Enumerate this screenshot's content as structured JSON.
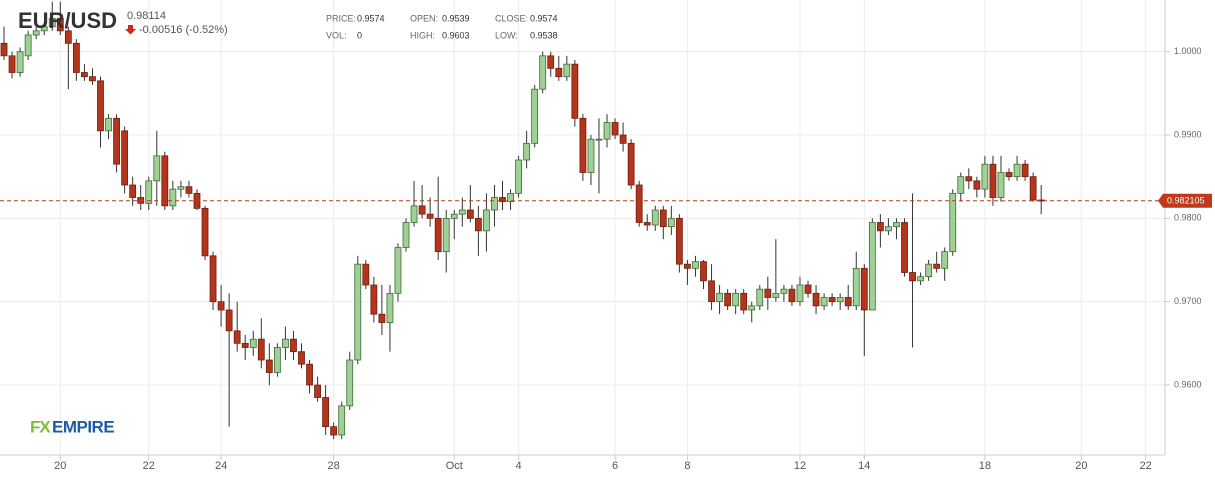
{
  "chart_data": {
    "type": "candlestick",
    "title": "EUR/USD",
    "price": "0.98114",
    "change": "-0.00516 (-0.52%)",
    "info": [
      {
        "label": "PRICE:",
        "value": "0.9574"
      },
      {
        "label": "OPEN:",
        "value": "0.9539"
      },
      {
        "label": "CLOSE:",
        "value": "0.9574"
      },
      {
        "label": "VOL:",
        "value": "0"
      },
      {
        "label": "HIGH:",
        "value": "0.9603"
      },
      {
        "label": "LOW:",
        "value": "0.9538"
      }
    ],
    "logo": [
      "FX",
      "EMPIRE"
    ],
    "current_price": 0.982105,
    "current_color": "#c0391b",
    "up_color": "#9fd095",
    "down_color": "#b3361c",
    "ylim": [
      0.9516,
      1.0062
    ],
    "yticks": [
      {
        "value": 0.96,
        "label": "0.9600"
      },
      {
        "value": 0.97,
        "label": "0.9700"
      },
      {
        "value": 0.98,
        "label": "0.9800"
      },
      {
        "value": 0.99,
        "label": "0.9900"
      },
      {
        "value": 1.0,
        "label": "1.0000"
      }
    ],
    "grid": true,
    "categories": [
      null,
      null,
      null,
      null,
      null,
      null,
      null,
      "20",
      null,
      null,
      null,
      null,
      null,
      null,
      null,
      null,
      null,
      null,
      "22",
      null,
      null,
      null,
      null,
      null,
      null,
      null,
      null,
      "24",
      null,
      null,
      null,
      null,
      null,
      null,
      null,
      null,
      null,
      null,
      null,
      null,
      null,
      "28",
      null,
      null,
      null,
      null,
      null,
      null,
      null,
      null,
      null,
      null,
      null,
      null,
      null,
      null,
      "Oct",
      null,
      null,
      null,
      null,
      null,
      null,
      null,
      "4",
      null,
      null,
      null,
      null,
      null,
      null,
      null,
      null,
      null,
      null,
      null,
      "6",
      null,
      null,
      null,
      null,
      null,
      null,
      null,
      null,
      "8",
      null,
      null,
      null,
      null,
      null,
      null,
      null,
      null,
      null,
      null,
      null,
      null,
      null,
      "12",
      null,
      null,
      null,
      null,
      null,
      null,
      null,
      "14",
      null,
      null,
      null,
      null,
      null,
      null,
      null,
      null,
      null,
      null,
      null,
      null,
      null,
      null,
      "18",
      null,
      null,
      null,
      null,
      null,
      null,
      null,
      null,
      null,
      null,
      null,
      "20",
      null,
      null,
      null,
      null,
      null,
      null,
      null,
      "22"
    ],
    "open": [
      1.001,
      0.9995,
      0.9975,
      0.9995,
      1.002,
      1.0025,
      1.003,
      1.004,
      1.0025,
      1.001,
      0.9975,
      0.997,
      0.9965,
      0.9905,
      0.992,
      0.9905,
      0.984,
      0.9825,
      0.9818,
      0.9845,
      0.9875,
      0.9815,
      0.9835,
      0.9838,
      0.983,
      0.9812,
      0.9755,
      0.97,
      0.969,
      0.9665,
      0.965,
      0.9645,
      0.9655,
      0.963,
      0.9615,
      0.9645,
      0.9655,
      0.964,
      0.9625,
      0.96,
      0.9585,
      0.955,
      0.954,
      0.9575,
      0.963,
      0.9745,
      0.972,
      0.9685,
      0.9675,
      0.971,
      0.9765,
      0.9795,
      0.9815,
      0.9805,
      0.98,
      0.976,
      0.98,
      0.9805,
      0.981,
      0.98,
      0.9785,
      0.981,
      0.9825,
      0.982,
      0.983,
      0.987,
      0.989,
      0.9955,
      0.9995,
      0.998,
      0.997,
      0.9985,
      0.992,
      0.9855,
      0.9895,
      0.9895,
      0.9915,
      0.99,
      0.989,
      0.984,
      0.9795,
      0.9792,
      0.981,
      0.979,
      0.98,
      0.9745,
      0.974,
      0.9748,
      0.9725,
      0.97,
      0.971,
      0.9695,
      0.971,
      0.969,
      0.9695,
      0.9715,
      0.9705,
      0.971,
      0.9715,
      0.97,
      0.972,
      0.971,
      0.9695,
      0.9705,
      0.97,
      0.9705,
      0.9695,
      0.974,
      0.969,
      0.9795,
      0.9785,
      0.979,
      0.9795,
      0.9735,
      0.9725,
      0.973,
      0.9745,
      0.974,
      0.976,
      0.983,
      0.985,
      0.9845,
      0.9835,
      0.9865,
      0.9825,
      0.9855,
      0.985,
      0.9865,
      0.985,
      0.9822,
      null,
      null,
      null,
      null,
      null,
      null,
      null,
      null,
      null,
      null,
      null,
      null,
      null
    ],
    "high": [
      1.003,
      1.0,
      1.0005,
      1.0025,
      1.003,
      1.0035,
      1.006,
      1.006,
      1.003,
      1.0015,
      0.9985,
      0.998,
      0.997,
      0.9925,
      0.9925,
      0.991,
      0.985,
      0.984,
      0.985,
      0.9905,
      0.988,
      0.9845,
      0.9845,
      0.9845,
      0.9835,
      0.9815,
      0.976,
      0.972,
      0.971,
      0.97,
      0.966,
      0.9665,
      0.968,
      0.965,
      0.965,
      0.967,
      0.9665,
      0.965,
      0.963,
      0.961,
      0.96,
      0.9555,
      0.958,
      0.964,
      0.9755,
      0.975,
      0.973,
      0.972,
      0.972,
      0.977,
      0.98,
      0.9845,
      0.984,
      0.9825,
      0.985,
      0.981,
      0.981,
      0.9825,
      0.984,
      0.9815,
      0.983,
      0.984,
      0.9845,
      0.9835,
      0.9875,
      0.9905,
      0.996,
      1.0,
      1.0,
      0.9995,
      0.9995,
      0.999,
      0.9925,
      0.99,
      0.992,
      0.9925,
      0.992,
      0.9915,
      0.9895,
      0.9845,
      0.9805,
      0.9815,
      0.9815,
      0.9815,
      0.9805,
      0.975,
      0.9755,
      0.975,
      0.9745,
      0.972,
      0.9715,
      0.9715,
      0.9715,
      0.97,
      0.972,
      0.973,
      0.9775,
      0.972,
      0.972,
      0.973,
      0.9725,
      0.972,
      0.971,
      0.971,
      0.971,
      0.972,
      0.976,
      0.9745,
      0.98,
      0.9805,
      0.98,
      0.98,
      0.98,
      0.983,
      0.9735,
      0.975,
      0.976,
      0.9765,
      0.9835,
      0.9855,
      0.986,
      0.985,
      0.9875,
      0.9875,
      0.9875,
      0.986,
      0.9875,
      0.987,
      0.9855,
      0.984,
      null,
      null,
      null,
      null,
      null,
      null,
      null,
      null,
      null,
      null,
      null,
      null,
      null
    ],
    "low": [
      0.999,
      0.9968,
      0.997,
      0.999,
      1.0015,
      1.002,
      1.0025,
      1.002,
      0.9955,
      0.9965,
      0.9965,
      0.996,
      0.9885,
      0.9895,
      0.9855,
      0.983,
      0.9815,
      0.981,
      0.981,
      0.9815,
      0.981,
      0.981,
      0.9825,
      0.9825,
      0.981,
      0.975,
      0.969,
      0.967,
      0.955,
      0.964,
      0.963,
      0.9635,
      0.962,
      0.96,
      0.961,
      0.963,
      0.963,
      0.962,
      0.959,
      0.958,
      0.954,
      0.9535,
      0.9535,
      0.957,
      0.9625,
      0.9715,
      0.9675,
      0.966,
      0.964,
      0.97,
      0.976,
      0.979,
      0.98,
      0.979,
      0.975,
      0.9735,
      0.9775,
      0.979,
      0.9795,
      0.9755,
      0.976,
      0.979,
      0.981,
      0.981,
      0.9825,
      0.986,
      0.9885,
      0.995,
      0.997,
      0.9965,
      0.9965,
      0.991,
      0.9845,
      0.984,
      0.983,
      0.9885,
      0.9895,
      0.988,
      0.9835,
      0.979,
      0.9785,
      0.9785,
      0.9775,
      0.978,
      0.9735,
      0.972,
      0.973,
      0.9715,
      0.969,
      0.9685,
      0.969,
      0.9685,
      0.9685,
      0.9675,
      0.969,
      0.969,
      0.97,
      0.97,
      0.9695,
      0.9695,
      0.9705,
      0.9685,
      0.969,
      0.9695,
      0.969,
      0.969,
      0.969,
      0.9635,
      0.969,
      0.9765,
      0.978,
      0.9775,
      0.973,
      0.9645,
      0.972,
      0.9725,
      0.9735,
      0.9725,
      0.9755,
      0.982,
      0.9835,
      0.9825,
      0.9825,
      0.9815,
      0.982,
      0.9845,
      0.9845,
      0.9845,
      0.982,
      0.9805,
      null,
      null,
      null,
      null,
      null,
      null,
      null,
      null,
      null,
      null,
      null,
      null,
      null
    ],
    "close": [
      0.9995,
      0.9975,
      1.0,
      1.002,
      1.0025,
      1.003,
      1.004,
      1.0025,
      1.001,
      0.9975,
      0.997,
      0.9965,
      0.9905,
      0.992,
      0.9865,
      0.984,
      0.9825,
      0.9818,
      0.9845,
      0.9875,
      0.9815,
      0.9835,
      0.9838,
      0.983,
      0.9812,
      0.9755,
      0.97,
      0.969,
      0.9665,
      0.965,
      0.9645,
      0.9655,
      0.963,
      0.9615,
      0.9645,
      0.9655,
      0.964,
      0.9625,
      0.96,
      0.9585,
      0.955,
      0.954,
      0.9575,
      0.963,
      0.9745,
      0.972,
      0.9685,
      0.9675,
      0.971,
      0.9765,
      0.9795,
      0.9815,
      0.9805,
      0.98,
      0.976,
      0.98,
      0.9805,
      0.981,
      0.98,
      0.9785,
      0.981,
      0.9825,
      0.982,
      0.983,
      0.987,
      0.989,
      0.9955,
      0.9995,
      0.998,
      0.997,
      0.9985,
      0.992,
      0.9855,
      0.9895,
      0.9895,
      0.9915,
      0.99,
      0.989,
      0.984,
      0.9795,
      0.9792,
      0.981,
      0.979,
      0.98,
      0.9745,
      0.974,
      0.9748,
      0.9725,
      0.97,
      0.971,
      0.9695,
      0.971,
      0.969,
      0.9695,
      0.9715,
      0.9705,
      0.971,
      0.9715,
      0.97,
      0.972,
      0.971,
      0.9695,
      0.9705,
      0.97,
      0.9705,
      0.9695,
      0.974,
      0.969,
      0.9795,
      0.9785,
      0.979,
      0.9795,
      0.9735,
      0.9725,
      0.973,
      0.9745,
      0.974,
      0.976,
      0.983,
      0.985,
      0.9845,
      0.9835,
      0.9865,
      0.9825,
      0.9855,
      0.985,
      0.9865,
      0.985,
      0.9822,
      0.9821,
      null,
      null,
      null,
      null,
      null,
      null,
      null,
      null,
      null,
      null,
      null,
      null,
      null
    ]
  }
}
